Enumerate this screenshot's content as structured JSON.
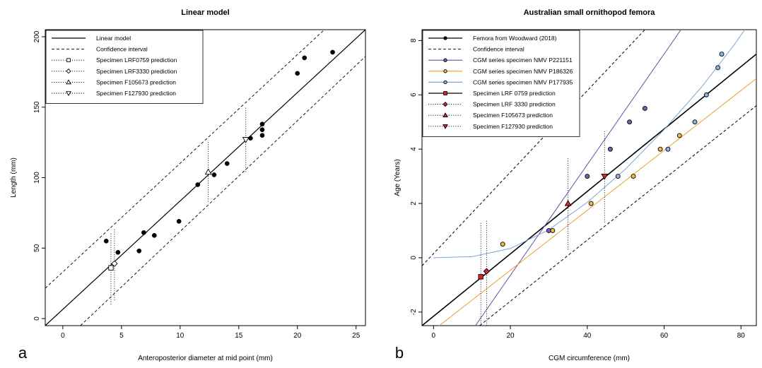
{
  "chart_data": [
    {
      "panel_letter": "a",
      "type": "scatter",
      "title": "Linear model",
      "xlabel": "Anteroposterior diameter at mid point (mm)",
      "ylabel": "Length (mm)",
      "xlim": [
        -1.5,
        25.8
      ],
      "ylim": [
        -5,
        205
      ],
      "xticks": [
        0,
        5,
        10,
        15,
        20,
        25
      ],
      "yticks": [
        0,
        50,
        100,
        150,
        200
      ],
      "grid": false,
      "legend_position": "top-left",
      "legend": [
        {
          "label": "Linear model",
          "line": "solid",
          "marker": "none"
        },
        {
          "label": "Confidence interval",
          "line": "dashed",
          "marker": "none"
        },
        {
          "label": "Specimen LRF0759 prediction",
          "line": "dotted",
          "marker": "square"
        },
        {
          "label": "Specimen LRF3330 prediction",
          "line": "dotted",
          "marker": "diamond"
        },
        {
          "label": "Specimen F105673 prediction",
          "line": "dotted",
          "marker": "triangle-up"
        },
        {
          "label": "Specimen F127930 prediction",
          "line": "dotted",
          "marker": "triangle-down"
        }
      ],
      "lines": [
        {
          "name": "Linear model",
          "dash": "solid",
          "points": [
            [
              -1.5,
              -5
            ],
            [
              25.8,
              205
            ]
          ]
        },
        {
          "name": "Confidence interval",
          "dash": "dashed",
          "points": [
            [
              -1.5,
              21.5
            ],
            [
              22.3,
              205
            ]
          ]
        },
        {
          "name": "Confidence interval",
          "dash": "dashed",
          "points": [
            [
              1.5,
              -5
            ],
            [
              25.8,
              186
            ]
          ]
        }
      ],
      "data_points": {
        "x": [
          3.7,
          4.7,
          6.5,
          6.9,
          7.8,
          9.9,
          11.5,
          12.9,
          14.0,
          16.0,
          17.0,
          17.0,
          17.0,
          20.0,
          20.6,
          23.0
        ],
        "y": [
          55,
          47,
          48,
          61,
          59,
          69,
          95,
          102,
          110,
          128,
          130,
          134,
          138,
          174,
          185,
          189
        ],
        "color": "#000000"
      },
      "predictions": [
        {
          "name": "Specimen LRF0759 prediction",
          "marker": "square",
          "x": 4.1,
          "y": 36,
          "range": [
            10,
            61
          ]
        },
        {
          "name": "Specimen LRF3330 prediction",
          "marker": "diamond",
          "x": 4.4,
          "y": 39,
          "range": [
            13,
            64
          ]
        },
        {
          "name": "Specimen F105673 prediction",
          "marker": "triangle-up",
          "x": 12.4,
          "y": 104,
          "range": [
            83,
            126
          ]
        },
        {
          "name": "Specimen F127930 prediction",
          "marker": "triangle-down",
          "x": 15.6,
          "y": 127,
          "range": [
            104,
            150
          ]
        }
      ]
    },
    {
      "panel_letter": "b",
      "type": "scatter",
      "title": "Australian small ornithopod femora",
      "xlabel": "CGM circumference (mm)",
      "ylabel": "Age (Years)",
      "xlim": [
        -3,
        84
      ],
      "ylim": [
        -2.5,
        8.4
      ],
      "xticks": [
        0,
        20,
        40,
        60,
        80
      ],
      "yticks": [
        -2,
        0,
        2,
        4,
        6,
        8
      ],
      "grid": false,
      "legend_position": "top-left",
      "legend": [
        {
          "label": "Femora from Woodward (2018)",
          "line": "solid",
          "line_color": "#000000",
          "marker": "circle",
          "fill": "#000000"
        },
        {
          "label": "Confidence interval",
          "line": "dashed",
          "line_color": "#000000",
          "marker": "none"
        },
        {
          "label": "CGM series specimen NMV P221151",
          "line": "solid",
          "line_color": "#6c4f9e",
          "marker": "circle",
          "fill": "#7b5fb0"
        },
        {
          "label": "CGM series specimen NMV P186326",
          "line": "solid",
          "line_color": "#e8a033",
          "marker": "circle",
          "fill": "#f2b84b"
        },
        {
          "label": "CGM series specimen NMV P177935",
          "line": "solid",
          "line_color": "#7fa3d6",
          "marker": "circle",
          "fill": "#8fb4e3"
        },
        {
          "label": "Specimen LRF 0759 prediction",
          "line": "solid",
          "line_color": "#000000",
          "marker": "square",
          "fill": "#d9262a"
        },
        {
          "label": "Specimen LRF 3330 prediction",
          "line": "dotted",
          "line_color": "#000000",
          "marker": "diamond",
          "fill": "#d9262a"
        },
        {
          "label": "Specimen F105673 prediction",
          "line": "dotted",
          "line_color": "#000000",
          "marker": "triangle-up",
          "fill": "#d9262a"
        },
        {
          "label": "Specimen F127930 prediction",
          "line": "dotted",
          "line_color": "#000000",
          "marker": "triangle-down",
          "fill": "#d9262a"
        }
      ],
      "lines": [
        {
          "name": "Femora from Woodward (2018)",
          "color": "#000000",
          "dash": "solid",
          "width": 1.6,
          "points": [
            [
              -3,
              -2.5
            ],
            [
              84,
              7.5
            ]
          ]
        },
        {
          "name": "Confidence interval",
          "color": "#000000",
          "dash": "dashed",
          "width": 1,
          "points": [
            [
              -3,
              -0.3
            ],
            [
              55,
              8.4
            ]
          ]
        },
        {
          "name": "Confidence interval",
          "color": "#000000",
          "dash": "dashed",
          "width": 1,
          "points": [
            [
              12,
              -2.5
            ],
            [
              84,
              5.6
            ]
          ]
        },
        {
          "name": "CGM series specimen NMV P221151",
          "color": "#6c4f9e",
          "dash": "solid",
          "width": 1,
          "points": [
            [
              10.9,
              -2.5
            ],
            [
              64.4,
              8.4
            ]
          ]
        },
        {
          "name": "CGM series specimen NMV P186326",
          "color": "#e8a033",
          "dash": "solid",
          "width": 1,
          "points": [
            [
              1.5,
              -2.5
            ],
            [
              84,
              6.6
            ]
          ]
        },
        {
          "name": "CGM series specimen NMV P177935",
          "color": "#7fa3d6",
          "dash": "solid",
          "width": 1,
          "points": [
            [
              0,
              0
            ],
            [
              10,
              0.04
            ],
            [
              20,
              0.34
            ],
            [
              30,
              1.03
            ],
            [
              40,
              2.04
            ],
            [
              50,
              3.27
            ],
            [
              60,
              4.72
            ],
            [
              70,
              6.33
            ],
            [
              78,
              7.8
            ],
            [
              81,
              8.4
            ]
          ]
        }
      ],
      "series": [
        {
          "name": "CGM series specimen NMV P221151",
          "fill": "#7b5fb0",
          "x": [
            30,
            40,
            46,
            51,
            55
          ],
          "y": [
            1.0,
            3.0,
            4.0,
            5.0,
            5.5
          ]
        },
        {
          "name": "CGM series specimen NMV P186326",
          "fill": "#f2b84b",
          "x": [
            18,
            31,
            41,
            52,
            59,
            64
          ],
          "y": [
            0.5,
            1.0,
            2.0,
            3.0,
            4.0,
            4.5
          ]
        },
        {
          "name": "CGM series specimen NMV P177935",
          "fill": "#8fb4e3",
          "x": [
            48,
            61,
            68,
            71,
            74,
            75
          ],
          "y": [
            3.0,
            4.0,
            5.0,
            6.0,
            7.0,
            7.5
          ]
        }
      ],
      "predictions": [
        {
          "name": "Specimen LRF 0759 prediction",
          "marker": "square",
          "fill": "#d9262a",
          "x": 12.3,
          "y": -0.7,
          "range": [
            -2.5,
            1.3
          ]
        },
        {
          "name": "Specimen LRF 3330 prediction",
          "marker": "diamond",
          "fill": "#d9262a",
          "x": 13.8,
          "y": -0.5,
          "range": [
            -2.5,
            1.4
          ]
        },
        {
          "name": "Specimen F105673 prediction",
          "marker": "triangle-up",
          "fill": "#d9262a",
          "x": 35.0,
          "y": 2.0,
          "range": [
            0.3,
            3.7
          ]
        },
        {
          "name": "Specimen F127930 prediction",
          "marker": "triangle-down",
          "fill": "#d9262a",
          "x": 44.5,
          "y": 3.0,
          "range": [
            1.3,
            4.7
          ]
        }
      ]
    }
  ]
}
